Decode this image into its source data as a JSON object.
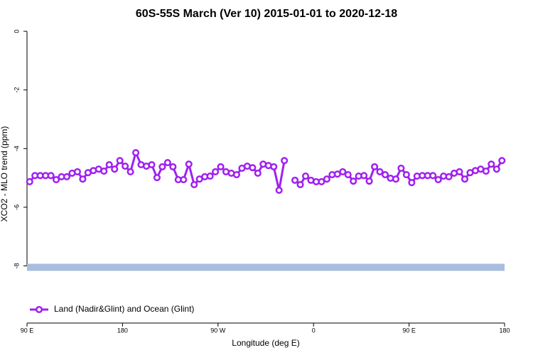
{
  "chart_data": {
    "type": "line",
    "title": "60S-55S March (Ver 10)   2015-01-01 to 2020-12-18",
    "x_label": "Longitude (deg E)",
    "y_label": "XCO2 - MLO trend (ppm)",
    "xlim": [
      90,
      540
    ],
    "ylim": [
      -9.95,
      0.22
    ],
    "xticks": [
      {
        "value": 90,
        "label": "90 E"
      },
      180,
      {
        "value": 270,
        "label": "90 W"
      },
      {
        "value": 360,
        "label": "0"
      },
      {
        "value": 450,
        "label": "90 E"
      },
      {
        "value": 540,
        "label": "180"
      }
    ],
    "yticks": [
      0,
      -2,
      -4,
      -6,
      -8
    ],
    "legend": "bottom-left",
    "band": {
      "value": -8.05,
      "color": "#a8bede"
    },
    "x": [
      92.5,
      97.5,
      102.5,
      107.5,
      112.5,
      117.5,
      122.5,
      127.5,
      132.5,
      137.5,
      142.5,
      147.5,
      152.5,
      157.5,
      162.5,
      167.5,
      172.5,
      177.5,
      182.5,
      187.5,
      192.5,
      197.5,
      202.5,
      207.5,
      212.5,
      217.5,
      222.5,
      227.5,
      232.5,
      237.5,
      242.5,
      247.5,
      252.5,
      257.5,
      262.5,
      267.5,
      272.5,
      277.5,
      282.5,
      287.5,
      292.5,
      297.5,
      302.5,
      307.5,
      312.5,
      317.5,
      322.5,
      327.5,
      332.5,
      337.5,
      342.5,
      347.5,
      352.5,
      357.5,
      362.5,
      367.5,
      372.5,
      377.5,
      382.5,
      387.5,
      392.5,
      397.5,
      402.5,
      407.5,
      412.5,
      417.5,
      422.5,
      427.5,
      432.5,
      437.5,
      442.5,
      447.5,
      452.5,
      457.5,
      462.5,
      467.5,
      472.5,
      477.5,
      482.5,
      487.5,
      492.5,
      497.5,
      502.5,
      507.5,
      512.5,
      517.5,
      522.5,
      527.5,
      532.5,
      537.5
    ],
    "series": [
      {
        "name": "Land (Nadir&Glint) and Ocean (Glint)",
        "color": "#a020f0",
        "values": [
          -5.13,
          -4.92,
          -4.92,
          -4.92,
          -4.92,
          -5.06,
          -4.96,
          -4.96,
          -4.84,
          -4.79,
          -5.04,
          -4.82,
          -4.75,
          -4.7,
          -4.77,
          -4.55,
          -4.7,
          -4.41,
          -4.6,
          -4.79,
          -4.14,
          -4.55,
          -4.6,
          -4.55,
          -4.99,
          -4.62,
          -4.48,
          -4.62,
          -5.06,
          -5.06,
          -4.53,
          -5.23,
          -5.04,
          -4.96,
          -4.94,
          -4.79,
          -4.62,
          -4.79,
          -4.84,
          -4.89,
          -4.67,
          -4.6,
          -4.65,
          -4.84,
          -4.53,
          -4.58,
          -4.62,
          -5.42,
          -4.41,
          null,
          -5.08,
          -5.23,
          -4.94,
          -5.08,
          -5.13,
          -5.13,
          -5.04,
          -4.89,
          -4.87,
          -4.79,
          -4.89,
          -5.11,
          -4.94,
          -4.92,
          -5.11,
          -4.62,
          -4.79,
          -4.89,
          -5.01,
          -5.04,
          -4.67,
          -4.89,
          -5.16,
          -4.94,
          -4.92,
          -4.92,
          -4.92,
          -5.06,
          -4.94,
          -4.96,
          -4.84,
          -4.79,
          -5.04,
          -4.82,
          -4.75,
          -4.7,
          -4.77,
          -4.53,
          -4.7,
          -4.41
        ]
      }
    ]
  }
}
